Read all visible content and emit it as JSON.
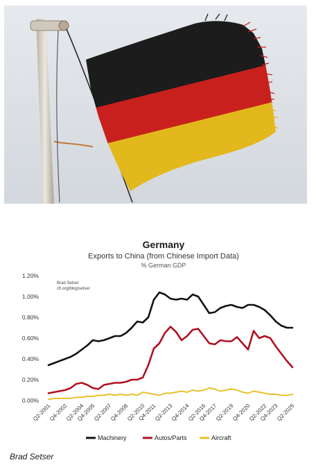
{
  "chart_data": {
    "type": "line",
    "title": "Germany",
    "subtitle": "Exports to China (from Chinese Import Data)",
    "unit_label": "% German GDP",
    "source": [
      "Brad Setser",
      "cfr.org/blog/setser"
    ],
    "ylim": [
      0,
      1.2
    ],
    "y_ticks": [
      "0.00%",
      "0.20%",
      "0.40%",
      "0.60%",
      "0.80%",
      "1.00%",
      "1.20%"
    ],
    "x_tick_labels": [
      "Q2-2001",
      "Q4-2002",
      "Q2-2004",
      "Q4-2005",
      "Q2-2007",
      "Q4-2008",
      "Q2-2010",
      "Q4-2011",
      "Q2-2013",
      "Q4-2014",
      "Q2-2016",
      "Q4-2017",
      "Q2-2019",
      "Q4-2020",
      "Q2-2022",
      "Q4-2023",
      "Q2-2025"
    ],
    "grid": false,
    "legend_position": "bottom",
    "series": [
      {
        "name": "Machinery",
        "color": "#111111",
        "values": [
          0.34,
          0.36,
          0.38,
          0.4,
          0.42,
          0.45,
          0.49,
          0.53,
          0.58,
          0.57,
          0.58,
          0.6,
          0.62,
          0.62,
          0.65,
          0.7,
          0.76,
          0.75,
          0.8,
          0.97,
          1.04,
          1.02,
          0.98,
          0.97,
          0.98,
          0.97,
          1.02,
          1.0,
          0.92,
          0.84,
          0.85,
          0.89,
          0.91,
          0.92,
          0.9,
          0.89,
          0.92,
          0.92,
          0.9,
          0.87,
          0.82,
          0.76,
          0.72,
          0.7,
          0.7
        ]
      },
      {
        "name": "Autos/Parts",
        "color": "#b01020",
        "values": [
          0.07,
          0.08,
          0.09,
          0.1,
          0.12,
          0.16,
          0.17,
          0.15,
          0.12,
          0.11,
          0.15,
          0.16,
          0.17,
          0.17,
          0.18,
          0.2,
          0.2,
          0.22,
          0.34,
          0.5,
          0.55,
          0.65,
          0.71,
          0.66,
          0.58,
          0.62,
          0.68,
          0.69,
          0.62,
          0.55,
          0.54,
          0.58,
          0.57,
          0.57,
          0.61,
          0.55,
          0.49,
          0.67,
          0.6,
          0.62,
          0.6,
          0.52,
          0.45,
          0.38,
          0.32
        ]
      },
      {
        "name": "Aircraft",
        "color": "#e8c02c",
        "values": [
          0.01,
          0.02,
          0.02,
          0.02,
          0.02,
          0.03,
          0.03,
          0.04,
          0.04,
          0.05,
          0.05,
          0.06,
          0.05,
          0.06,
          0.05,
          0.06,
          0.05,
          0.08,
          0.07,
          0.06,
          0.05,
          0.07,
          0.07,
          0.08,
          0.09,
          0.08,
          0.1,
          0.09,
          0.1,
          0.12,
          0.11,
          0.09,
          0.1,
          0.11,
          0.1,
          0.08,
          0.07,
          0.09,
          0.08,
          0.07,
          0.06,
          0.06,
          0.05,
          0.05,
          0.06
        ]
      }
    ]
  },
  "photo": {
    "colors": {
      "sky": "#dde1e6",
      "black": "#1c1c1c",
      "red": "#c8201d",
      "gold": "#e2b81d",
      "pole": "#dcd8cc"
    }
  },
  "credit": "Brad Setser"
}
